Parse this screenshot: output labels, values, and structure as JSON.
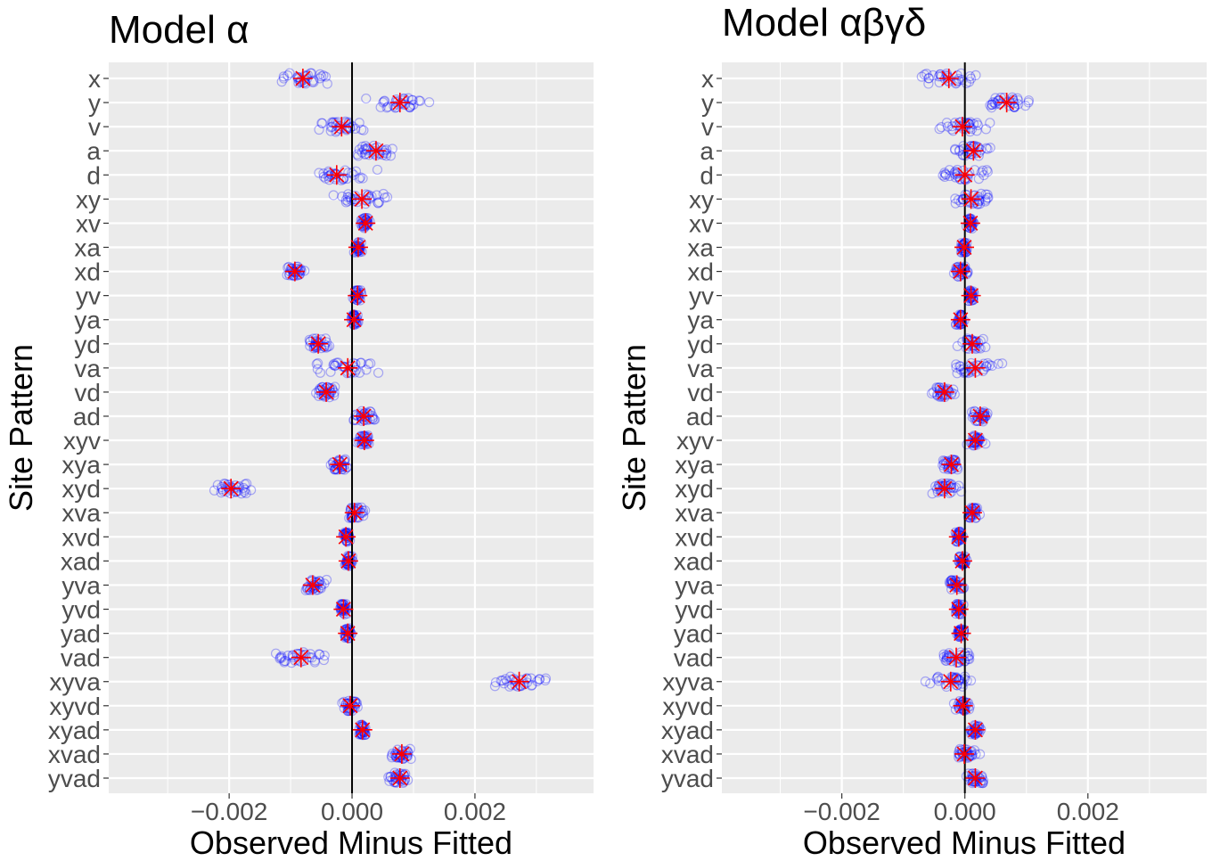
{
  "chart_data": [
    {
      "type": "scatter",
      "title": "Model α",
      "xlabel": "Observed Minus Fitted",
      "ylabel": "Site Pattern",
      "xlim": [
        -0.00396,
        0.00393
      ],
      "xticks": [
        -0.002,
        0.0,
        0.002
      ],
      "xtick_labels": [
        "−0.002",
        "0.000",
        "0.002"
      ],
      "grid": true,
      "reference_line_x": 0,
      "categories": [
        "x",
        "y",
        "v",
        "a",
        "d",
        "xy",
        "xv",
        "xa",
        "xd",
        "yv",
        "ya",
        "yd",
        "va",
        "vd",
        "ad",
        "xyv",
        "xya",
        "xyd",
        "xva",
        "xvd",
        "xad",
        "yva",
        "yvd",
        "yad",
        "vad",
        "xyva",
        "xyvd",
        "xyad",
        "xvad",
        "yvad"
      ],
      "means": [
        -0.0008,
        0.00078,
        -0.00017,
        0.00039,
        -0.00025,
        0.00016,
        0.00022,
        0.0001,
        -0.00093,
        9e-05,
        3e-05,
        -0.00055,
        -7e-05,
        -0.00042,
        0.00019,
        0.0002,
        -0.0002,
        -0.00197,
        4e-05,
        -0.0001,
        -6e-05,
        -0.00064,
        -0.00014,
        -7e-05,
        -0.00083,
        0.00272,
        -3e-05,
        0.00017,
        0.00081,
        0.00078
      ],
      "spread": [
        0.0008,
        0.0008,
        0.0006,
        0.0005,
        0.0008,
        0.0007,
        0.0001,
        0.0001,
        0.0002,
        0.0001,
        0.0001,
        0.0003,
        0.0008,
        0.0003,
        0.0003,
        0.0002,
        0.0002,
        0.0005,
        0.0003,
        0.0001,
        0.0001,
        0.0003,
        0.0001,
        0.0001,
        0.0007,
        0.0007,
        0.0002,
        0.0001,
        0.0003,
        0.0003
      ],
      "point_color": "#0000ff",
      "mean_color": "#ff0000"
    },
    {
      "type": "scatter",
      "title": "Model αβγδ",
      "xlabel": "Observed Minus Fitted",
      "ylabel": "Site Pattern",
      "xlim": [
        -0.00395,
        0.00393
      ],
      "xticks": [
        -0.002,
        0.0,
        0.002
      ],
      "xtick_labels": [
        "−0.002",
        "0.000",
        "0.002"
      ],
      "grid": true,
      "reference_line_x": 0,
      "categories": [
        "x",
        "y",
        "v",
        "a",
        "d",
        "xy",
        "xv",
        "xa",
        "xd",
        "yv",
        "ya",
        "yd",
        "va",
        "vd",
        "ad",
        "xyv",
        "xya",
        "xyd",
        "xva",
        "xvd",
        "xad",
        "yva",
        "yvd",
        "yad",
        "vad",
        "xyva",
        "xyvd",
        "xyad",
        "xvad",
        "yvad"
      ],
      "means": [
        -0.00026,
        0.00068,
        -4e-05,
        0.00014,
        0.0,
        0.0001,
        9e-05,
        -1e-05,
        -7e-05,
        0.0001,
        -7e-05,
        0.00012,
        0.00017,
        -0.00033,
        0.00025,
        0.00017,
        -0.00022,
        -0.00033,
        0.00012,
        -0.0001,
        -4e-05,
        -0.00013,
        -0.0001,
        -6e-05,
        -0.00014,
        -0.00023,
        -3e-05,
        0.00017,
        -1e-05,
        0.00017
      ],
      "spread": [
        0.0006,
        0.0006,
        0.0006,
        0.0005,
        0.0008,
        0.0006,
        0.0001,
        0.0001,
        0.0002,
        0.0001,
        0.0001,
        0.0003,
        0.0008,
        0.0003,
        0.0002,
        0.0002,
        0.0002,
        0.0004,
        0.0002,
        0.0001,
        0.0001,
        0.0002,
        0.0001,
        0.0001,
        0.0005,
        0.0005,
        0.0002,
        0.0002,
        0.0003,
        0.0003
      ],
      "point_color": "#0000ff",
      "mean_color": "#ff0000"
    }
  ]
}
